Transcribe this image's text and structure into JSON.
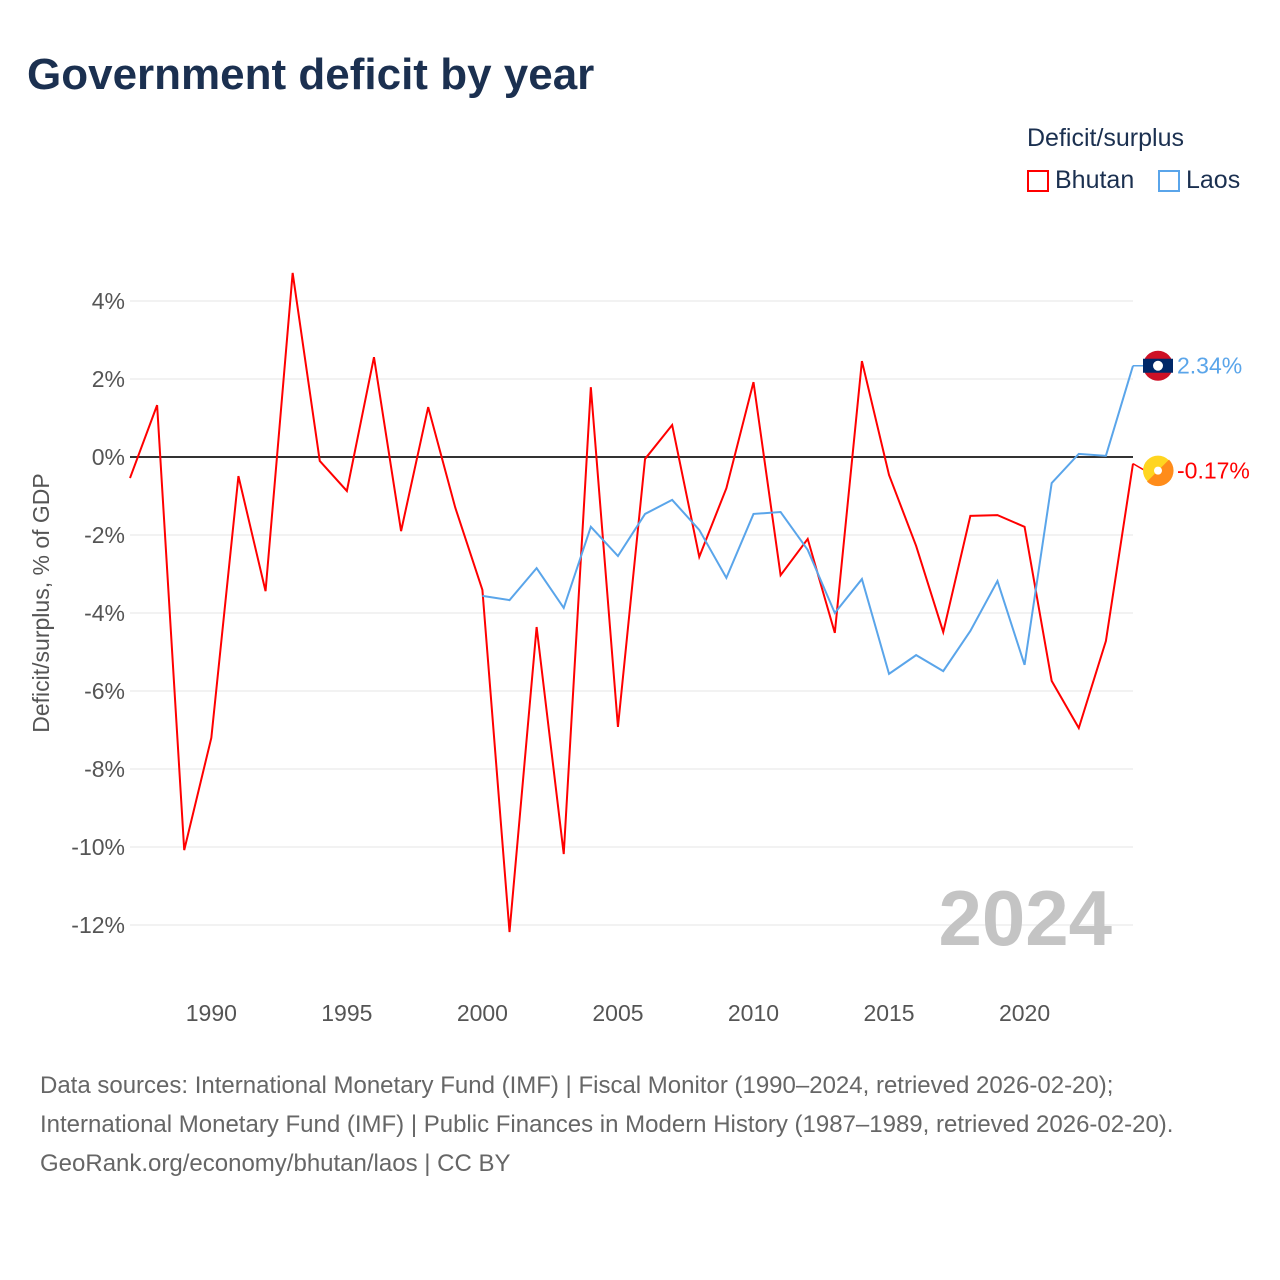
{
  "title": "Government deficit by year",
  "legend": {
    "title": "Deficit/surplus",
    "items": [
      {
        "name": "Bhutan",
        "color": "#ff0000"
      },
      {
        "name": "Laos",
        "color": "#5aa5ea"
      }
    ]
  },
  "chart_data": {
    "type": "line",
    "title": "Government deficit by year",
    "ylabel": "Deficit/surplus, % of GDP",
    "xlabel": "",
    "ylim": [
      -13,
      5
    ],
    "xlim": [
      1987,
      2024
    ],
    "yticks": [
      4,
      2,
      0,
      -2,
      -4,
      -6,
      -8,
      -10,
      -12
    ],
    "ytick_labels": [
      "4%",
      "2%",
      "0%",
      "-2%",
      "-4%",
      "-6%",
      "-8%",
      "-10%",
      "-12%"
    ],
    "xticks": [
      1990,
      1995,
      2000,
      2005,
      2010,
      2015,
      2020
    ],
    "xtick_labels": [
      "1990",
      "1995",
      "2000",
      "2005",
      "2010",
      "2015",
      "2020"
    ],
    "year_watermark": "2024",
    "series": [
      {
        "name": "Bhutan",
        "color": "#ff0000",
        "end_label": "-0.17%",
        "x": [
          1987,
          1988,
          1989,
          1990,
          1991,
          1992,
          1993,
          1994,
          1995,
          1996,
          1997,
          1998,
          1999,
          2000,
          2001,
          2002,
          2003,
          2004,
          2005,
          2006,
          2007,
          2008,
          2009,
          2010,
          2011,
          2012,
          2013,
          2014,
          2015,
          2016,
          2017,
          2018,
          2019,
          2020,
          2021,
          2022,
          2023,
          2024
        ],
        "values": [
          -0.54,
          1.33,
          -10.08,
          -7.2,
          -0.49,
          -3.44,
          4.72,
          -0.1,
          -0.87,
          2.56,
          -1.9,
          1.28,
          -1.3,
          -3.41,
          -12.18,
          -4.36,
          -10.18,
          1.79,
          -6.92,
          -0.05,
          0.82,
          -2.56,
          -0.8,
          1.92,
          -3.03,
          -2.1,
          -4.51,
          2.46,
          -0.46,
          -2.28,
          -4.49,
          -1.51,
          -1.49,
          -1.79,
          -5.74,
          -6.95,
          -4.72,
          -0.17
        ]
      },
      {
        "name": "Laos",
        "color": "#5aa5ea",
        "end_label": "2.34%",
        "x": [
          2000,
          2001,
          2002,
          2003,
          2004,
          2005,
          2006,
          2007,
          2008,
          2009,
          2010,
          2011,
          2012,
          2013,
          2014,
          2015,
          2016,
          2017,
          2018,
          2019,
          2020,
          2021,
          2022,
          2023,
          2024
        ],
        "values": [
          -3.56,
          -3.67,
          -2.85,
          -3.87,
          -1.79,
          -2.54,
          -1.46,
          -1.1,
          -1.87,
          -3.1,
          -1.46,
          -1.41,
          -2.38,
          -4.0,
          -3.13,
          -5.56,
          -5.08,
          -5.49,
          -4.46,
          -3.18,
          -5.33,
          -0.67,
          0.08,
          0.03,
          2.34
        ]
      }
    ]
  },
  "sources": {
    "line1": "Data sources: International Monetary Fund (IMF) | Fiscal Monitor (1990–2024, retrieved 2026-02-20); International Monetary Fund (IMF) | Public Finances in Modern History (1987–1989, retrieved 2026-02-20).",
    "line2": "GeoRank.org/economy/bhutan/laos | CC BY"
  }
}
